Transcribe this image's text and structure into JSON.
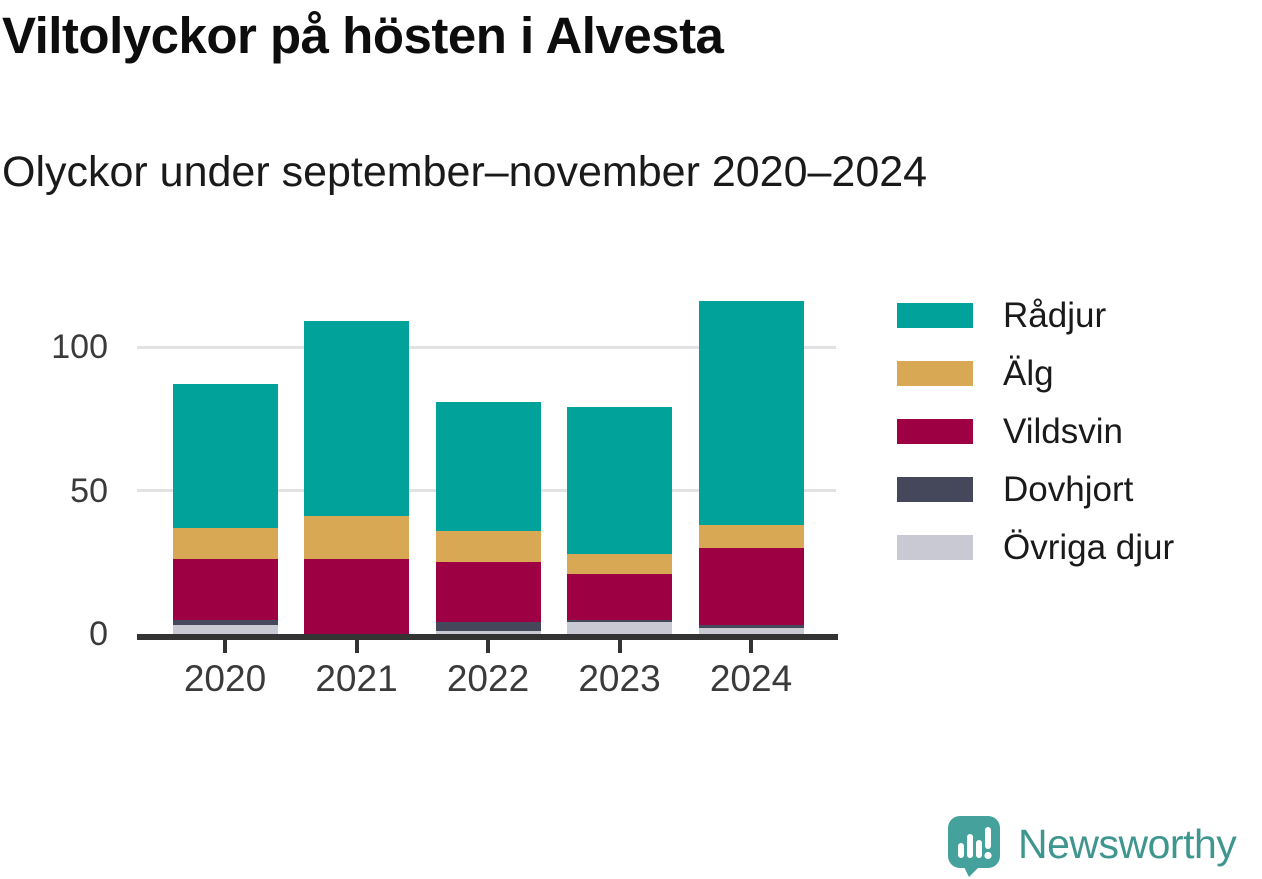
{
  "title": "Viltolyckor på hösten i Alvesta",
  "subtitle": "Olyckor under september–november 2020–2024",
  "chart_data": {
    "type": "bar",
    "stacked": true,
    "title": "Viltolyckor på hösten i Alvesta",
    "subtitle": "Olyckor under september–november 2020–2024",
    "categories": [
      "2020",
      "2021",
      "2022",
      "2023",
      "2024"
    ],
    "series": [
      {
        "name": "Rådjur",
        "color": "#00a29a",
        "values": [
          50,
          68,
          45,
          51,
          78
        ]
      },
      {
        "name": "Älg",
        "color": "#d8a855",
        "values": [
          11,
          15,
          11,
          7,
          8
        ]
      },
      {
        "name": "Vildsvin",
        "color": "#9e0143",
        "values": [
          21,
          26,
          21,
          16,
          27
        ]
      },
      {
        "name": "Dovhjort",
        "color": "#45485a",
        "values": [
          2,
          0,
          3,
          1,
          1
        ]
      },
      {
        "name": "Övriga djur",
        "color": "#c9c9d3",
        "values": [
          3,
          0,
          1,
          4,
          2
        ]
      }
    ],
    "totals": [
      87,
      109,
      81,
      79,
      116
    ],
    "yticks": [
      0,
      50,
      100
    ],
    "ylim": [
      0,
      116
    ],
    "grid": "horizontal",
    "legend_position": "right",
    "colors": {
      "axis": "#333333",
      "gridline": "#e2e2e2",
      "tick_label": "#3a3a3a"
    }
  },
  "footer": {
    "brand": "Newsworthy",
    "brand_color": "#3f968f",
    "icon_color": "#45a19b"
  }
}
